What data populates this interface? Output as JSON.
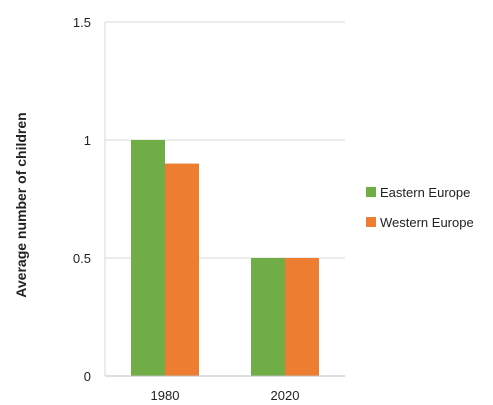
{
  "chart_data": {
    "type": "bar",
    "categories": [
      "1980",
      "2020"
    ],
    "series": [
      {
        "name": "Eastern Europe",
        "values": [
          1.0,
          0.5
        ],
        "color": "#70ad47"
      },
      {
        "name": "Western Europe",
        "values": [
          0.9,
          0.5
        ],
        "color": "#ed7d31"
      }
    ],
    "title": "",
    "xlabel": "",
    "ylabel": "Average number of children",
    "ylim": [
      0,
      1.5
    ],
    "yticks": [
      "0",
      "0.5",
      "1",
      "1.5"
    ],
    "grid": true,
    "legend_position": "right"
  }
}
